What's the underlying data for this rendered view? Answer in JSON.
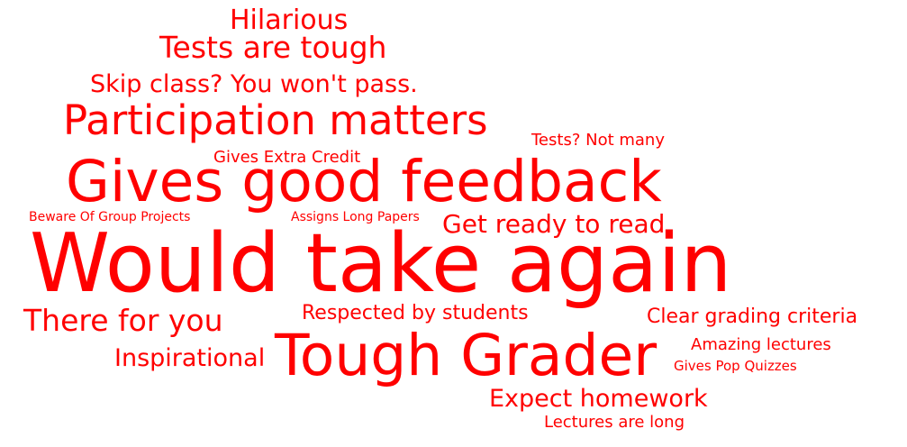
{
  "word_color": "#ff0000",
  "words": {
    "hilarious": "Hilarious",
    "tests_tough": "Tests are tough",
    "skip_class": "Skip class? You won't pass.",
    "participation": "Participation matters",
    "tests_not_many": "Tests? Not many",
    "extra_credit": "Gives Extra Credit",
    "good_feedback": "Gives good feedback",
    "group_projects": "Beware Of Group Projects",
    "long_papers": "Assigns Long Papers",
    "ready_to_read": "Get ready to read",
    "take_again": "Would take again",
    "there_for_you": "There for you",
    "respected": "Respected by students",
    "clear_grading": "Clear grading criteria",
    "amazing_lectures": "Amazing lectures",
    "inspirational": "Inspirational",
    "tough_grader": "Tough Grader",
    "pop_quizzes": "Gives Pop Quizzes",
    "expect_homework": "Expect homework",
    "lectures_long": "Lectures are long"
  }
}
